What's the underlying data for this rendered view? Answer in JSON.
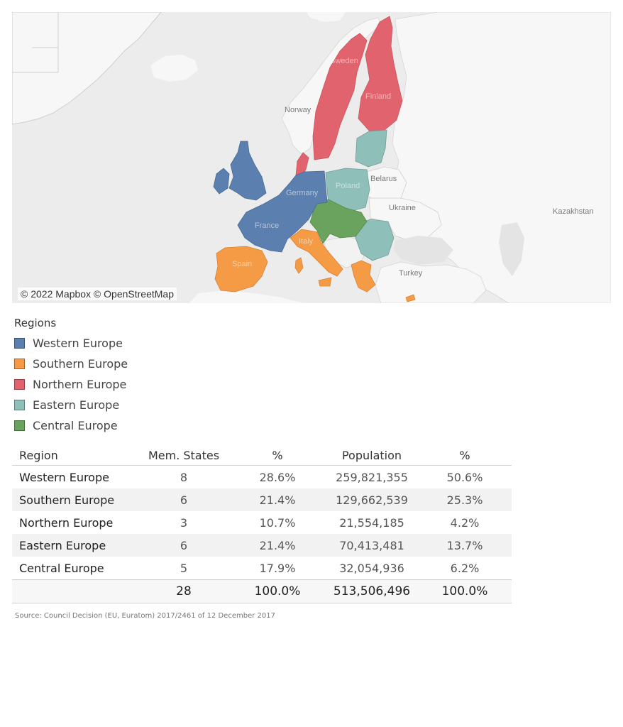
{
  "map": {
    "attribution": "© 2022 Mapbox © OpenStreetMap",
    "labels": {
      "sweden": "Sweden",
      "finland": "Finland",
      "norway": "Norway",
      "belarus": "Belarus",
      "poland": "Poland",
      "ukraine": "Ukraine",
      "germany": "Germany",
      "france": "France",
      "italy": "Italy",
      "spain": "Spain",
      "turkey": "Turkey",
      "kazakhstan": "Kazakhstan"
    }
  },
  "legend": {
    "title": "Regions",
    "items": [
      {
        "label": "Western Europe",
        "color": "#5b7fae"
      },
      {
        "label": "Southern Europe",
        "color": "#f59a45"
      },
      {
        "label": "Northern Europe",
        "color": "#e0636d"
      },
      {
        "label": "Eastern Europe",
        "color": "#8fbfb9"
      },
      {
        "label": "Central Europe",
        "color": "#6aa35e"
      }
    ]
  },
  "table": {
    "headers": [
      "Region",
      "Mem. States",
      "%",
      "Population",
      "%"
    ],
    "rows": [
      [
        "Western Europe",
        "8",
        "28.6%",
        "259,821,355",
        "50.6%"
      ],
      [
        "Southern Europe",
        "6",
        "21.4%",
        "129,662,539",
        "25.3%"
      ],
      [
        "Northern Europe",
        "3",
        "10.7%",
        "21,554,185",
        "4.2%"
      ],
      [
        "Eastern Europe",
        "6",
        "21.4%",
        "70,413,481",
        "13.7%"
      ],
      [
        "Central Europe",
        "5",
        "17.9%",
        "32,054,936",
        "6.2%"
      ]
    ],
    "total": [
      "",
      "28",
      "100.0%",
      "513,506,496",
      "100.0%"
    ]
  },
  "source": "Source: Council Decision (EU, Euratom) 2017/2461 of 12 December 2017"
}
